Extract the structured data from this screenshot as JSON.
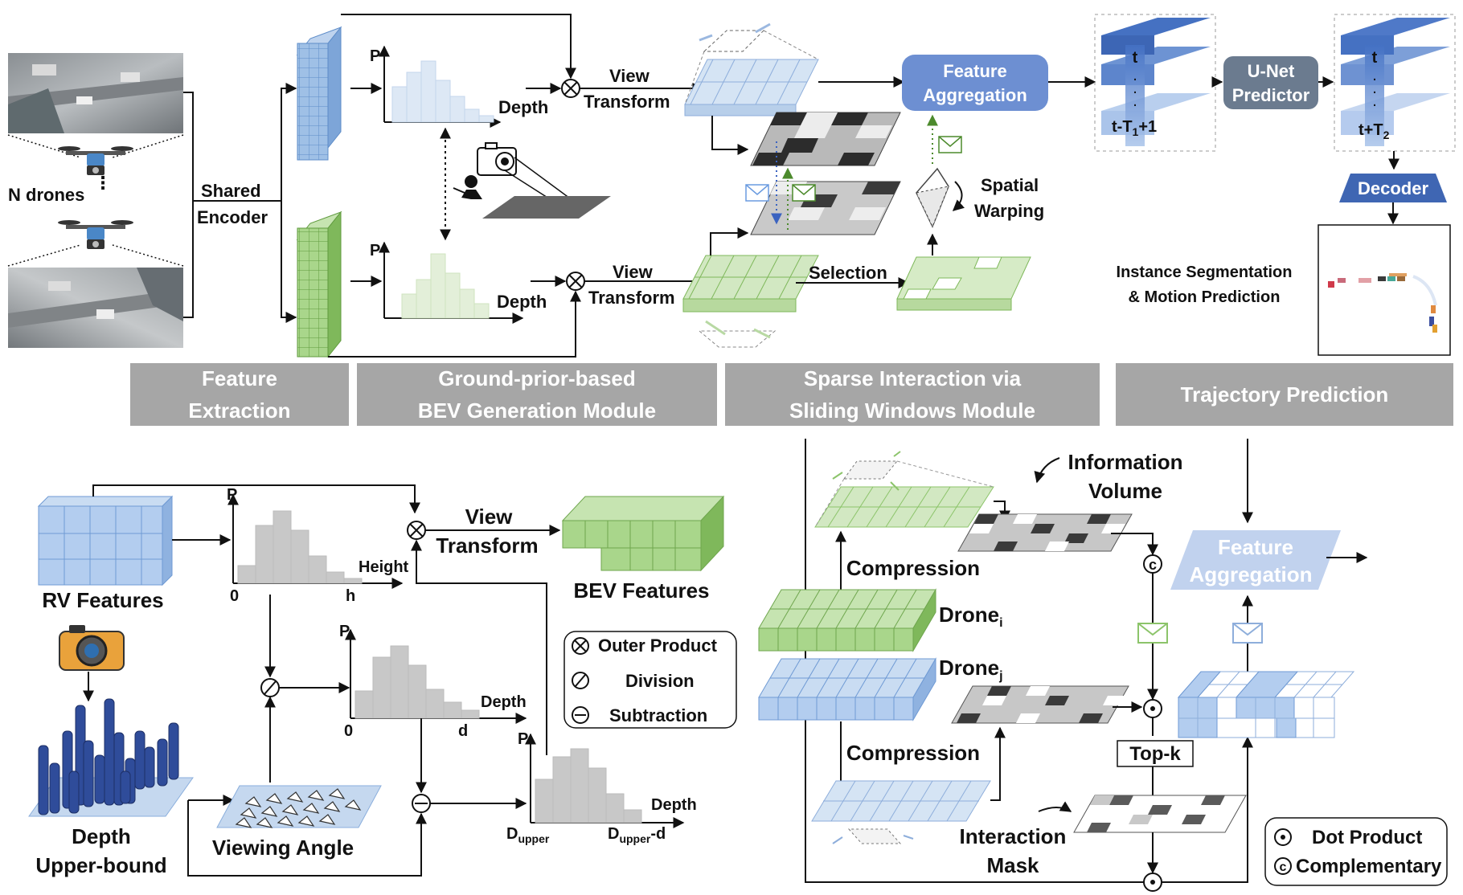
{
  "colors": {
    "blue_feature": "#7fa9dc",
    "green_feature": "#8cc46a",
    "band_gray": "#a6a6a6",
    "module_blue": "#6d8fd2",
    "decoder_blue": "#3f66b3",
    "histogram_blue": "#dde8f5",
    "histogram_green": "#e3efd9",
    "histogram_gray": "#c8c8c8"
  },
  "top": {
    "n_drones": "N drones",
    "shared_encoder": [
      "Shared",
      "Encoder"
    ],
    "axis_p": "P",
    "depth": "Depth",
    "view_transform": [
      "View",
      "Transform"
    ],
    "feature_aggregation": [
      "Feature",
      "Aggregation"
    ],
    "spatial_warping": [
      "Spatial",
      "Warping"
    ],
    "selection": "Selection",
    "stack_past": {
      "top": "t",
      "dots": ".",
      "bottom_main": "t-T",
      "bottom_sub": "1",
      "bottom_tail": "+1"
    },
    "stack_future": {
      "top": "t",
      "dots": ".",
      "bottom_main": "t+T",
      "bottom_sub": "2"
    },
    "unet_predictor": [
      "U-Net",
      "Predictor"
    ],
    "decoder": "Decoder",
    "instance_output": [
      "Instance Segmentation",
      "& Motion Prediction"
    ]
  },
  "sections": [
    {
      "lines": [
        "Feature",
        "Extraction"
      ]
    },
    {
      "lines": [
        "Ground-prior-based",
        "BEV Generation Module"
      ]
    },
    {
      "lines": [
        "Sparse Interaction via",
        "Sliding Windows Module"
      ]
    },
    {
      "lines": [
        "Trajectory Prediction"
      ]
    }
  ],
  "bev_module": {
    "rv_features": "RV Features",
    "axis_p": "P",
    "axis_zero": "0",
    "height": "Height",
    "h": "h",
    "view_transform": [
      "View",
      "Transform"
    ],
    "bev_features": "BEV Features",
    "depth": "Depth",
    "d": "d",
    "depth_upper_bound": [
      "Depth",
      "Upper-bound"
    ],
    "viewing_angle": "Viewing Angle",
    "d_upper": {
      "main": "D",
      "sub": "upper"
    },
    "d_upper_minus_d": {
      "main": "D",
      "sub": "upper",
      "tail": "-d"
    },
    "legend": [
      "Outer Product",
      "Division",
      "Subtraction"
    ]
  },
  "interaction_module": {
    "information_volume": [
      "Information",
      "Volume"
    ],
    "compression": "Compression",
    "drone_i": {
      "main": "Drone",
      "sub": "i"
    },
    "drone_j": {
      "main": "Drone",
      "sub": "j"
    },
    "top_k": "Top-k",
    "interaction_mask": [
      "Interaction",
      "Mask"
    ],
    "feature_aggregation": [
      "Feature",
      "Aggregation"
    ],
    "legend": [
      "Dot Product",
      "Complementary"
    ],
    "complementary_symbol": "c"
  }
}
